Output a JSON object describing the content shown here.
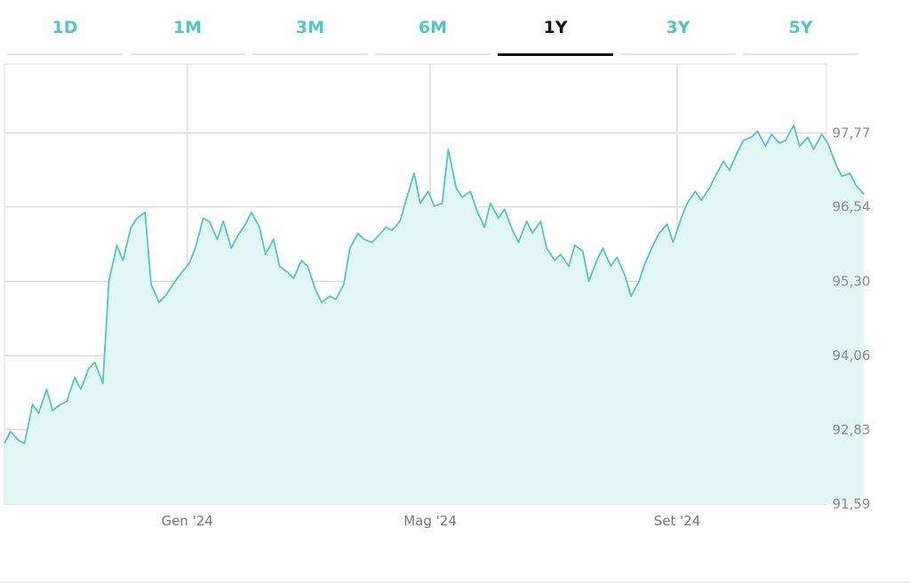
{
  "tabs": [
    {
      "label": "1D",
      "active": false
    },
    {
      "label": "1M",
      "active": false
    },
    {
      "label": "3M",
      "active": false
    },
    {
      "label": "6M",
      "active": false
    },
    {
      "label": "1Y",
      "active": true
    },
    {
      "label": "3Y",
      "active": false
    },
    {
      "label": "5Y",
      "active": false
    }
  ],
  "colors": {
    "line": "#52c5c5",
    "fill": "#e3f6f6",
    "grid": "#dcdcdc",
    "active_tab": "#111111",
    "tab": "#52c5c5"
  },
  "chart_data": {
    "type": "area",
    "title": "",
    "xlabel": "",
    "ylabel": "",
    "ylim": [
      91.59,
      98.92
    ],
    "yticks": [
      "97,77",
      "96,54",
      "95,30",
      "94,06",
      "92,83",
      "91,59"
    ],
    "ytick_values": [
      97.77,
      96.54,
      95.3,
      94.06,
      92.83,
      91.59
    ],
    "xticks": [
      {
        "label": "Gen '24",
        "date": "2024-01-01"
      },
      {
        "label": "Mag '24",
        "date": "2024-05-01"
      },
      {
        "label": "Set '24",
        "date": "2024-09-01"
      }
    ],
    "grid": true,
    "series": [
      {
        "points": [
          [
            "2023-10-02",
            92.6
          ],
          [
            "2023-10-05",
            92.8
          ],
          [
            "2023-10-09",
            92.65
          ],
          [
            "2023-10-12",
            92.6
          ],
          [
            "2023-10-16",
            93.25
          ],
          [
            "2023-10-19",
            93.1
          ],
          [
            "2023-10-23",
            93.5
          ],
          [
            "2023-10-26",
            93.15
          ],
          [
            "2023-10-30",
            93.25
          ],
          [
            "2023-11-02",
            93.3
          ],
          [
            "2023-11-06",
            93.7
          ],
          [
            "2023-11-09",
            93.5
          ],
          [
            "2023-11-13",
            93.85
          ],
          [
            "2023-11-16",
            93.95
          ],
          [
            "2023-11-20",
            93.6
          ],
          [
            "2023-11-23",
            95.3
          ],
          [
            "2023-11-27",
            95.9
          ],
          [
            "2023-11-30",
            95.65
          ],
          [
            "2023-12-04",
            96.2
          ],
          [
            "2023-12-07",
            96.35
          ],
          [
            "2023-12-11",
            96.45
          ],
          [
            "2023-12-14",
            95.25
          ],
          [
            "2023-12-18",
            94.95
          ],
          [
            "2023-12-21",
            95.05
          ],
          [
            "2023-12-27",
            95.35
          ],
          [
            "2024-01-02",
            95.6
          ],
          [
            "2024-01-05",
            95.85
          ],
          [
            "2024-01-09",
            96.35
          ],
          [
            "2024-01-12",
            96.3
          ],
          [
            "2024-01-16",
            96.0
          ],
          [
            "2024-01-19",
            96.3
          ],
          [
            "2024-01-23",
            95.85
          ],
          [
            "2024-01-26",
            96.05
          ],
          [
            "2024-01-30",
            96.25
          ],
          [
            "2024-02-02",
            96.45
          ],
          [
            "2024-02-06",
            96.2
          ],
          [
            "2024-02-09",
            95.75
          ],
          [
            "2024-02-13",
            96.0
          ],
          [
            "2024-02-16",
            95.55
          ],
          [
            "2024-02-20",
            95.45
          ],
          [
            "2024-02-23",
            95.35
          ],
          [
            "2024-02-27",
            95.65
          ],
          [
            "2024-03-01",
            95.55
          ],
          [
            "2024-03-05",
            95.15
          ],
          [
            "2024-03-08",
            94.95
          ],
          [
            "2024-03-12",
            95.05
          ],
          [
            "2024-03-15",
            95.0
          ],
          [
            "2024-03-19",
            95.25
          ],
          [
            "2024-03-22",
            95.85
          ],
          [
            "2024-03-26",
            96.1
          ],
          [
            "2024-03-29",
            96.0
          ],
          [
            "2024-04-02",
            95.95
          ],
          [
            "2024-04-05",
            96.05
          ],
          [
            "2024-04-09",
            96.2
          ],
          [
            "2024-04-12",
            96.15
          ],
          [
            "2024-04-16",
            96.3
          ],
          [
            "2024-04-19",
            96.65
          ],
          [
            "2024-04-23",
            97.1
          ],
          [
            "2024-04-26",
            96.6
          ],
          [
            "2024-04-30",
            96.8
          ],
          [
            "2024-05-03",
            96.55
          ],
          [
            "2024-05-07",
            96.6
          ],
          [
            "2024-05-10",
            97.5
          ],
          [
            "2024-05-14",
            96.85
          ],
          [
            "2024-05-17",
            96.7
          ],
          [
            "2024-05-21",
            96.8
          ],
          [
            "2024-05-24",
            96.5
          ],
          [
            "2024-05-28",
            96.2
          ],
          [
            "2024-05-31",
            96.6
          ],
          [
            "2024-06-04",
            96.35
          ],
          [
            "2024-06-07",
            96.5
          ],
          [
            "2024-06-11",
            96.15
          ],
          [
            "2024-06-14",
            95.95
          ],
          [
            "2024-06-18",
            96.3
          ],
          [
            "2024-06-21",
            96.1
          ],
          [
            "2024-06-25",
            96.3
          ],
          [
            "2024-06-28",
            95.85
          ],
          [
            "2024-07-02",
            95.65
          ],
          [
            "2024-07-05",
            95.75
          ],
          [
            "2024-07-09",
            95.55
          ],
          [
            "2024-07-12",
            95.9
          ],
          [
            "2024-07-16",
            95.8
          ],
          [
            "2024-07-19",
            95.3
          ],
          [
            "2024-07-23",
            95.65
          ],
          [
            "2024-07-26",
            95.85
          ],
          [
            "2024-07-30",
            95.55
          ],
          [
            "2024-08-02",
            95.7
          ],
          [
            "2024-08-06",
            95.4
          ],
          [
            "2024-08-09",
            95.05
          ],
          [
            "2024-08-13",
            95.3
          ],
          [
            "2024-08-16",
            95.6
          ],
          [
            "2024-08-20",
            95.9
          ],
          [
            "2024-08-23",
            96.1
          ],
          [
            "2024-08-27",
            96.25
          ],
          [
            "2024-08-30",
            95.95
          ],
          [
            "2024-09-03",
            96.35
          ],
          [
            "2024-09-06",
            96.6
          ],
          [
            "2024-09-10",
            96.8
          ],
          [
            "2024-09-13",
            96.65
          ],
          [
            "2024-09-17",
            96.85
          ],
          [
            "2024-09-20",
            97.05
          ],
          [
            "2024-09-24",
            97.3
          ],
          [
            "2024-09-27",
            97.15
          ],
          [
            "2024-10-01",
            97.45
          ],
          [
            "2024-10-04",
            97.65
          ],
          [
            "2024-10-08",
            97.7
          ],
          [
            "2024-10-11",
            97.8
          ],
          [
            "2024-10-15",
            97.55
          ],
          [
            "2024-10-18",
            97.75
          ],
          [
            "2024-10-22",
            97.6
          ],
          [
            "2024-10-25",
            97.65
          ],
          [
            "2024-10-29",
            97.9
          ],
          [
            "2024-11-01",
            97.55
          ],
          [
            "2024-11-05",
            97.7
          ],
          [
            "2024-11-08",
            97.5
          ],
          [
            "2024-11-12",
            97.75
          ],
          [
            "2024-11-15",
            97.6
          ],
          [
            "2024-11-19",
            97.25
          ],
          [
            "2024-11-22",
            97.05
          ],
          [
            "2024-11-26",
            97.1
          ],
          [
            "2024-11-29",
            96.9
          ],
          [
            "2024-12-03",
            96.75
          ]
        ]
      }
    ]
  }
}
